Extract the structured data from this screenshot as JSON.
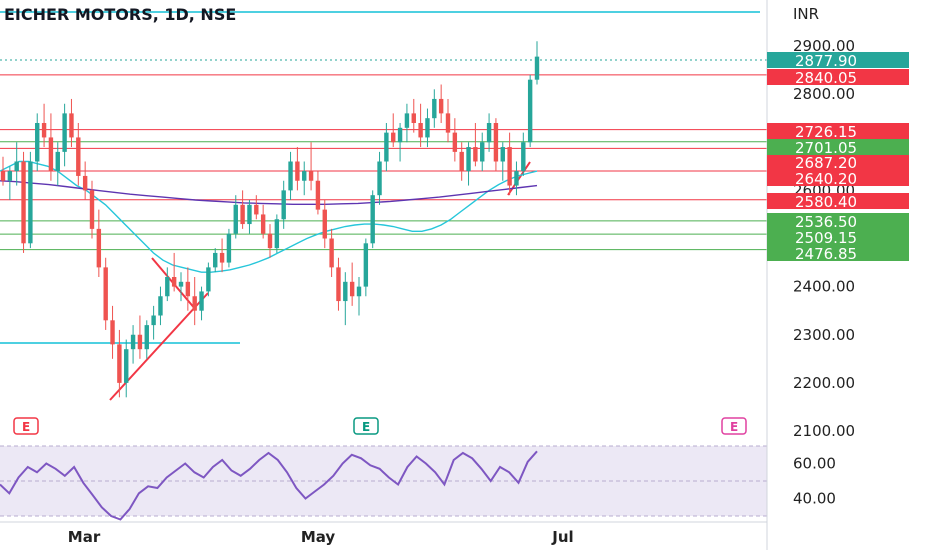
{
  "header": {
    "title": "EICHER MOTORS, 1D, NSE",
    "currency": "INR"
  },
  "chart_data": {
    "type": "candlestick",
    "title": "EICHER MOTORS, 1D, NSE",
    "symbol": "EICHER MOTORS",
    "interval": "1D",
    "exchange": "NSE",
    "currency": "INR",
    "ylim": [
      2100,
      2950
    ],
    "y_ticks": [
      "2100.00",
      "2200.00",
      "2300.00",
      "2400.00",
      "2600.00",
      "2800.00",
      "2900.00"
    ],
    "x_ticks": [
      "Mar",
      "May",
      "Jul"
    ],
    "last_price": "2877.90",
    "last_price_value": 2877.9,
    "support_resistance_red": [
      {
        "label": "2840.05",
        "value": 2840.05
      },
      {
        "label": "2726.15",
        "value": 2726.15
      },
      {
        "label": "2687.20",
        "value": 2687.2
      },
      {
        "label": "2640.20",
        "value": 2640.2
      },
      {
        "label": "2580.40",
        "value": 2580.4
      }
    ],
    "support_resistance_green": [
      {
        "label": "2701.05",
        "value": 2701.05
      },
      {
        "label": "2536.50",
        "value": 2536.5
      },
      {
        "label": "2509.15",
        "value": 2509.15
      },
      {
        "label": "2476.85",
        "value": 2476.85
      }
    ],
    "horizontal_cyan": [
      {
        "value": 2915.0
      },
      {
        "value": 2285.0
      }
    ],
    "candles": [
      [
        2640,
        2670,
        2610,
        2620
      ],
      [
        2620,
        2650,
        2580,
        2640
      ],
      [
        2640,
        2700,
        2610,
        2660
      ],
      [
        2660,
        2680,
        2470,
        2490
      ],
      [
        2490,
        2680,
        2480,
        2660
      ],
      [
        2660,
        2760,
        2640,
        2740
      ],
      [
        2740,
        2780,
        2690,
        2710
      ],
      [
        2710,
        2760,
        2620,
        2640
      ],
      [
        2640,
        2700,
        2610,
        2680
      ],
      [
        2680,
        2780,
        2650,
        2760
      ],
      [
        2760,
        2790,
        2690,
        2710
      ],
      [
        2710,
        2740,
        2610,
        2630
      ],
      [
        2630,
        2660,
        2580,
        2600
      ],
      [
        2600,
        2620,
        2500,
        2520
      ],
      [
        2520,
        2560,
        2420,
        2440
      ],
      [
        2440,
        2460,
        2310,
        2330
      ],
      [
        2330,
        2360,
        2250,
        2280
      ],
      [
        2280,
        2310,
        2170,
        2200
      ],
      [
        2200,
        2290,
        2170,
        2270
      ],
      [
        2270,
        2320,
        2240,
        2300
      ],
      [
        2300,
        2340,
        2250,
        2270
      ],
      [
        2270,
        2330,
        2250,
        2320
      ],
      [
        2320,
        2360,
        2290,
        2340
      ],
      [
        2340,
        2400,
        2320,
        2380
      ],
      [
        2380,
        2440,
        2370,
        2420
      ],
      [
        2420,
        2470,
        2390,
        2400
      ],
      [
        2400,
        2430,
        2370,
        2410
      ],
      [
        2410,
        2440,
        2350,
        2380
      ],
      [
        2380,
        2420,
        2320,
        2350
      ],
      [
        2350,
        2400,
        2330,
        2390
      ],
      [
        2390,
        2450,
        2380,
        2440
      ],
      [
        2440,
        2480,
        2430,
        2470
      ],
      [
        2470,
        2500,
        2430,
        2450
      ],
      [
        2450,
        2520,
        2440,
        2510
      ],
      [
        2510,
        2590,
        2500,
        2570
      ],
      [
        2570,
        2600,
        2520,
        2530
      ],
      [
        2530,
        2580,
        2510,
        2570
      ],
      [
        2570,
        2590,
        2540,
        2550
      ],
      [
        2550,
        2570,
        2500,
        2510
      ],
      [
        2510,
        2530,
        2460,
        2480
      ],
      [
        2480,
        2550,
        2470,
        2540
      ],
      [
        2540,
        2620,
        2520,
        2600
      ],
      [
        2600,
        2680,
        2580,
        2660
      ],
      [
        2660,
        2690,
        2600,
        2620
      ],
      [
        2620,
        2660,
        2590,
        2640
      ],
      [
        2640,
        2700,
        2600,
        2620
      ],
      [
        2620,
        2640,
        2550,
        2560
      ],
      [
        2560,
        2580,
        2480,
        2500
      ],
      [
        2500,
        2520,
        2420,
        2440
      ],
      [
        2440,
        2460,
        2350,
        2370
      ],
      [
        2370,
        2430,
        2320,
        2410
      ],
      [
        2410,
        2450,
        2360,
        2380
      ],
      [
        2380,
        2420,
        2340,
        2400
      ],
      [
        2400,
        2500,
        2380,
        2490
      ],
      [
        2490,
        2600,
        2480,
        2590
      ],
      [
        2590,
        2680,
        2570,
        2660
      ],
      [
        2660,
        2740,
        2640,
        2720
      ],
      [
        2720,
        2760,
        2690,
        2700
      ],
      [
        2700,
        2740,
        2660,
        2730
      ],
      [
        2730,
        2780,
        2700,
        2760
      ],
      [
        2760,
        2790,
        2720,
        2740
      ],
      [
        2740,
        2780,
        2690,
        2710
      ],
      [
        2710,
        2770,
        2690,
        2750
      ],
      [
        2750,
        2810,
        2730,
        2790
      ],
      [
        2790,
        2820,
        2740,
        2760
      ],
      [
        2760,
        2790,
        2700,
        2720
      ],
      [
        2720,
        2750,
        2660,
        2680
      ],
      [
        2680,
        2700,
        2620,
        2640
      ],
      [
        2640,
        2700,
        2610,
        2690
      ],
      [
        2690,
        2740,
        2650,
        2660
      ],
      [
        2660,
        2720,
        2640,
        2700
      ],
      [
        2700,
        2760,
        2680,
        2740
      ],
      [
        2740,
        2750,
        2640,
        2660
      ],
      [
        2660,
        2700,
        2620,
        2690
      ],
      [
        2690,
        2720,
        2590,
        2610
      ],
      [
        2610,
        2660,
        2590,
        2640
      ],
      [
        2640,
        2720,
        2630,
        2700
      ],
      [
        2700,
        2840,
        2690,
        2830
      ],
      [
        2830,
        2910,
        2820,
        2877.9
      ]
    ],
    "sma_fast": [
      2640,
      2650,
      2660,
      2660,
      2655,
      2650,
      2640,
      2625,
      2610,
      2600,
      2585,
      2570,
      2550,
      2530,
      2510,
      2490,
      2470,
      2455,
      2445,
      2440,
      2435,
      2430,
      2430,
      2432,
      2435,
      2440,
      2445,
      2452,
      2460,
      2470,
      2480,
      2490,
      2500,
      2508,
      2515,
      2520,
      2525,
      2528,
      2530,
      2530,
      2528,
      2525,
      2520,
      2515,
      2515,
      2520,
      2528,
      2540,
      2555,
      2570,
      2585,
      2600,
      2612,
      2622,
      2630,
      2635,
      2640
    ],
    "sma_slow": [
      2620,
      2618,
      2615,
      2612,
      2608,
      2604,
      2600,
      2596,
      2592,
      2589,
      2586,
      2583,
      2580,
      2578,
      2576,
      2574,
      2573,
      2572,
      2571,
      2571,
      2571,
      2572,
      2573,
      2575,
      2577,
      2580,
      2583,
      2586,
      2590,
      2594,
      2598,
      2602,
      2606,
      2610
    ],
    "rsi": {
      "ylim": [
        30,
        75
      ],
      "y_ticks": [
        "60.00",
        "40.00"
      ],
      "values": [
        48,
        43,
        52,
        58,
        55,
        60,
        57,
        53,
        58,
        49,
        42,
        35,
        30,
        28,
        34,
        43,
        47,
        46,
        52,
        56,
        60,
        55,
        52,
        58,
        62,
        56,
        53,
        57,
        62,
        66,
        62,
        55,
        46,
        40,
        44,
        48,
        53,
        60,
        65,
        63,
        59,
        57,
        52,
        48,
        58,
        64,
        60,
        55,
        48,
        62,
        66,
        63,
        57,
        50,
        58,
        55,
        49,
        61,
        67
      ]
    },
    "earnings_markers": [
      {
        "label": "E",
        "color": "#f23645"
      },
      {
        "label": "E",
        "color": "#089981"
      },
      {
        "label": "E",
        "color": "#e040a0"
      }
    ]
  }
}
